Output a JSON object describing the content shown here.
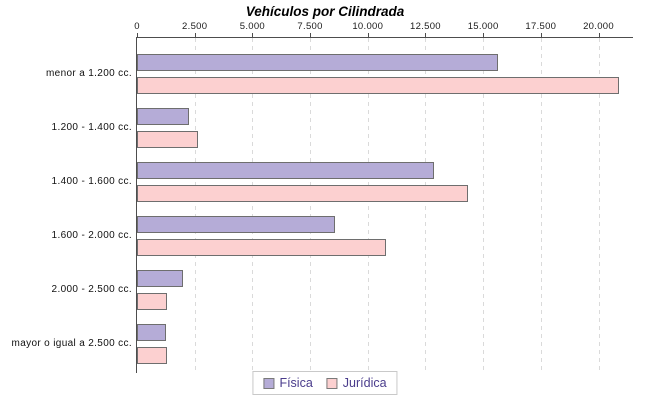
{
  "chart_data": {
    "type": "bar",
    "orientation": "horizontal",
    "title": "Vehículos por Cilindrada",
    "categories": [
      "menor a 1.200 cc.",
      "1.200 - 1.400 cc.",
      "1.400 - 1.600 cc.",
      "1.600 - 2.000 cc.",
      "2.000 - 2.500 cc.",
      "mayor o igual a 2.500 cc."
    ],
    "series": [
      {
        "name": "Física",
        "color": "#b5acd7",
        "values": [
          15650,
          2250,
          12850,
          8600,
          2000,
          1250
        ]
      },
      {
        "name": "Jurídica",
        "color": "#fcd0d0",
        "values": [
          20900,
          2650,
          14350,
          10800,
          1300,
          1300
        ]
      }
    ],
    "xlim": [
      0,
      21450
    ],
    "xticks": [
      0,
      2500,
      5000,
      7500,
      10000,
      12500,
      15000,
      17500,
      20000
    ],
    "xtick_labels": [
      "0",
      "2.500",
      "5.000",
      "7.500",
      "10.000",
      "12.500",
      "15.000",
      "17.500",
      "20.000"
    ],
    "grid": "vertical-dashed",
    "legend_position": "bottom"
  },
  "colors": {
    "fisica_fill": "#b5acd7",
    "juridica_fill": "#fcd0d0",
    "bar_border": "#6e6e6e",
    "axis_line": "#4d4d4d",
    "gridline": "#dadada",
    "legend_text": "#4a3c8c",
    "legend_border": "#c9c9c9",
    "title_text": "#000000"
  }
}
